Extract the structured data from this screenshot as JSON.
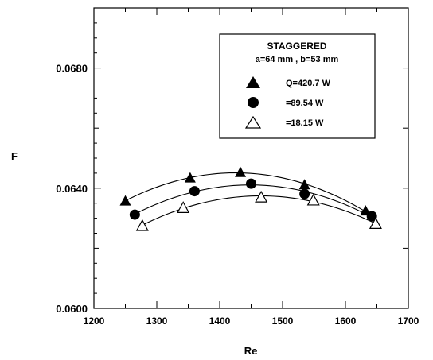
{
  "chart_data": {
    "type": "scatter",
    "xlabel": "Re",
    "ylabel": "F",
    "xlim": [
      1200,
      1700
    ],
    "ylim": [
      0.06,
      0.07
    ],
    "x_ticks": [
      1200,
      1300,
      1400,
      1500,
      1600,
      1700
    ],
    "x_tick_labels": [
      "1200",
      "1300",
      "1400",
      "1500",
      "1600",
      "1700"
    ],
    "y_ticks": [
      0.06,
      0.064,
      0.068
    ],
    "y_tick_labels": [
      "0.0600",
      "0.0640",
      "0.0680"
    ],
    "grid": false,
    "legend": {
      "placement": "top-right",
      "title_line1": "STAGGERED",
      "title_line2": "a=64  mm , b=53  mm"
    },
    "series": [
      {
        "name": "Q=420.7 W",
        "marker": "filled-triangle",
        "x": [
          1250,
          1353,
          1433,
          1535,
          1632
        ],
        "y": [
          0.06358,
          0.06435,
          0.06453,
          0.06412,
          0.06325
        ],
        "fit": [
          0.063581,
          0.064335,
          0.064553,
          0.064107,
          0.063234
        ]
      },
      {
        "name": "=89.54 W",
        "marker": "filled-circle",
        "x": [
          1265,
          1360,
          1450,
          1535,
          1642
        ],
        "y": [
          0.06312,
          0.0639,
          0.06415,
          0.06381,
          0.06307
        ],
        "fit": [
          0.063123,
          0.063901,
          0.064152,
          0.063823,
          0.063061
        ]
      },
      {
        "name": "=18.15 W",
        "marker": "open-triangle",
        "x": [
          1277,
          1342,
          1466,
          1549,
          1648
        ],
        "y": [
          0.06275,
          0.06335,
          0.0637,
          0.0636,
          0.06282
        ],
        "fit": [
          0.062766,
          0.06334,
          0.063727,
          0.063562,
          0.062821
        ]
      }
    ]
  }
}
